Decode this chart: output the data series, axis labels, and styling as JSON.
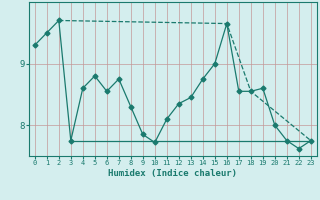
{
  "x": [
    0,
    1,
    2,
    3,
    4,
    5,
    6,
    7,
    8,
    9,
    10,
    11,
    12,
    13,
    14,
    15,
    16,
    17,
    18,
    19,
    20,
    21,
    22,
    23
  ],
  "y_main": [
    9.3,
    9.5,
    9.7,
    7.75,
    8.6,
    8.8,
    8.55,
    8.75,
    8.3,
    7.85,
    7.72,
    8.1,
    8.35,
    8.45,
    8.75,
    9.0,
    9.65,
    8.55,
    8.55,
    8.6,
    8.0,
    7.75,
    7.62,
    7.75
  ],
  "trend_x": [
    2,
    3,
    23
  ],
  "trend_y": [
    9.7,
    7.75,
    7.75
  ],
  "trend2_x": [
    2,
    16,
    18,
    23
  ],
  "trend2_y": [
    9.7,
    9.65,
    8.55,
    7.75
  ],
  "line_color": "#1a7a6e",
  "bg_color": "#d4eeee",
  "xlabel": "Humidex (Indice chaleur)",
  "xlim": [
    -0.5,
    23.5
  ],
  "ylim": [
    7.5,
    10.0
  ],
  "yticks": [
    8,
    9
  ],
  "xticks": [
    0,
    1,
    2,
    3,
    4,
    5,
    6,
    7,
    8,
    9,
    10,
    11,
    12,
    13,
    14,
    15,
    16,
    17,
    18,
    19,
    20,
    21,
    22,
    23
  ],
  "marker": "D",
  "markersize": 2.5,
  "linewidth": 0.9
}
